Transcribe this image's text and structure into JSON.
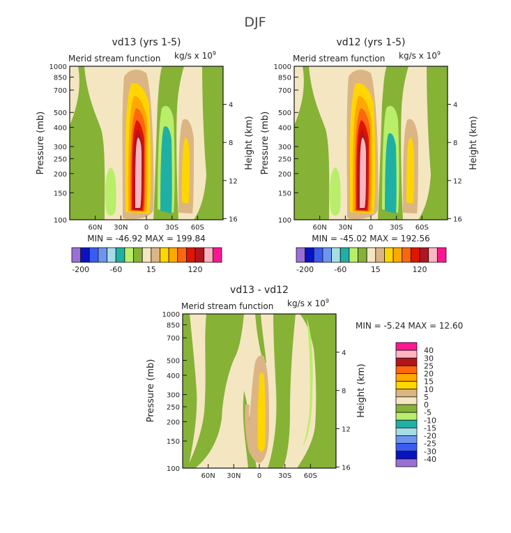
{
  "figure": {
    "title": "DJF"
  },
  "colors": {
    "colorbar_top": [
      "#9b6fd6",
      "#0a13c4",
      "#3a5cf0",
      "#6d95f0",
      "#a6dce6",
      "#1fb0a5",
      "#b9ee6a",
      "#86b236",
      "#f5e6c2",
      "#dbb584",
      "#ffd600",
      "#ffa800",
      "#ff6610",
      "#e11400",
      "#b2151d",
      "#fbb6c0",
      "#ff1692"
    ],
    "colorbar_diff": [
      "#9b6fd6",
      "#0a13c4",
      "#3a5cf0",
      "#6d95f0",
      "#a6dce6",
      "#1fb0a5",
      "#b9ee6a",
      "#86b236",
      "#f5e6c2",
      "#dbb584",
      "#ffd600",
      "#ffa800",
      "#ff6610",
      "#b2151d",
      "#fbb6c0",
      "#ff1692"
    ]
  },
  "chart_data": [
    {
      "type": "contour",
      "title": "vd13 (yrs 1-5)",
      "subtitle_left": "Merid stream function",
      "subtitle_right_base": "kg/s x 10",
      "subtitle_right_exp": "9",
      "ylabel": "Pressure (mb)",
      "ylabel_right": "Height (km)",
      "pressure_ticks": [
        "100",
        "150",
        "200",
        "250",
        "300",
        "400",
        "500",
        "700",
        "850",
        "1000"
      ],
      "pressure_values": [
        100,
        150,
        200,
        250,
        300,
        400,
        500,
        700,
        850,
        1000
      ],
      "height_ticks": [
        "16",
        "12",
        "8",
        "4"
      ],
      "height_values": [
        16,
        12,
        8,
        4
      ],
      "lat_ticks": [
        "60N",
        "30N",
        "0",
        "30S",
        "60S"
      ],
      "lat_values": [
        60,
        30,
        0,
        -30,
        -60
      ],
      "xlim": [
        90,
        -90
      ],
      "ylim": [
        1000,
        100
      ],
      "stats": "MIN = -46.92   MAX = 199.84",
      "colorbar_labels": [
        "-200",
        "-60",
        "15",
        "120"
      ]
    },
    {
      "type": "contour",
      "title": "vd12 (yrs 1-5)",
      "subtitle_left": "Merid stream function",
      "subtitle_right_base": "kg/s x 10",
      "subtitle_right_exp": "9",
      "ylabel": "Pressure (mb)",
      "ylabel_right": "Height (km)",
      "pressure_ticks": [
        "100",
        "150",
        "200",
        "250",
        "300",
        "400",
        "500",
        "700",
        "850",
        "1000"
      ],
      "pressure_values": [
        100,
        150,
        200,
        250,
        300,
        400,
        500,
        700,
        850,
        1000
      ],
      "height_ticks": [
        "16",
        "12",
        "8",
        "4"
      ],
      "height_values": [
        16,
        12,
        8,
        4
      ],
      "lat_ticks": [
        "60N",
        "30N",
        "0",
        "30S",
        "60S"
      ],
      "lat_values": [
        60,
        30,
        0,
        -30,
        -60
      ],
      "xlim": [
        90,
        -90
      ],
      "ylim": [
        1000,
        100
      ],
      "stats": "MIN = -45.02   MAX = 192.56",
      "colorbar_labels": [
        "-200",
        "-60",
        "15",
        "120"
      ]
    },
    {
      "type": "contour",
      "title": "vd13 - vd12",
      "subtitle_left": "Merid stream function",
      "subtitle_right_base": "kg/s x 10",
      "subtitle_right_exp": "9",
      "ylabel": "Pressure (mb)",
      "ylabel_right": "Height (km)",
      "pressure_ticks": [
        "100",
        "150",
        "200",
        "250",
        "300",
        "400",
        "500",
        "700",
        "850",
        "1000"
      ],
      "pressure_values": [
        100,
        150,
        200,
        250,
        300,
        400,
        500,
        700,
        850,
        1000
      ],
      "height_ticks": [
        "16",
        "12",
        "8",
        "4"
      ],
      "height_values": [
        16,
        12,
        8,
        4
      ],
      "lat_ticks": [
        "60N",
        "30N",
        "0",
        "30S",
        "60S"
      ],
      "lat_values": [
        60,
        30,
        0,
        -30,
        -60
      ],
      "xlim": [
        90,
        -90
      ],
      "ylim": [
        1000,
        100
      ],
      "stats": "MIN = -5.24   MAX = 12.60",
      "colorbar_labels": [
        "40",
        "30",
        "25",
        "20",
        "15",
        "10",
        "5",
        "0",
        "-5",
        "-10",
        "-15",
        "-20",
        "-25",
        "-30",
        "-40"
      ]
    }
  ]
}
